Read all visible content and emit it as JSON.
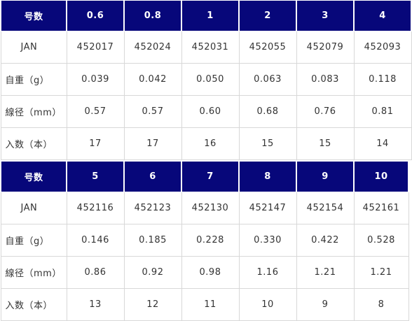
{
  "tables": [
    {
      "header": {
        "label": "号数",
        "values": [
          "0.6",
          "0.8",
          "1",
          "2",
          "3",
          "4"
        ]
      },
      "rows": [
        {
          "label": "JAN",
          "values": [
            "452017",
            "452024",
            "452031",
            "452055",
            "452079",
            "452093"
          ]
        },
        {
          "label": "自重（g）",
          "values": [
            "0.039",
            "0.042",
            "0.050",
            "0.063",
            "0.083",
            "0.118"
          ]
        },
        {
          "label": "線径（mm）",
          "values": [
            "0.57",
            "0.57",
            "0.60",
            "0.68",
            "0.76",
            "0.81"
          ]
        },
        {
          "label": "入数（本）",
          "values": [
            "17",
            "17",
            "16",
            "15",
            "15",
            "14"
          ]
        }
      ]
    },
    {
      "header": {
        "label": "号数",
        "values": [
          "5",
          "6",
          "7",
          "8",
          "9",
          "10"
        ]
      },
      "rows": [
        {
          "label": "JAN",
          "values": [
            "452116",
            "452123",
            "452130",
            "452147",
            "452154",
            "452161"
          ]
        },
        {
          "label": "自重（g）",
          "values": [
            "0.146",
            "0.185",
            "0.228",
            "0.330",
            "0.422",
            "0.528"
          ]
        },
        {
          "label": "線径（mm）",
          "values": [
            "0.86",
            "0.92",
            "0.98",
            "1.16",
            "1.21",
            "1.21"
          ]
        },
        {
          "label": "入数（本）",
          "values": [
            "13",
            "12",
            "11",
            "10",
            "9",
            "8"
          ]
        }
      ]
    }
  ],
  "colors": {
    "header_bg": "#07077a",
    "header_text": "#ffffff",
    "grid": "#d8d8d8"
  }
}
